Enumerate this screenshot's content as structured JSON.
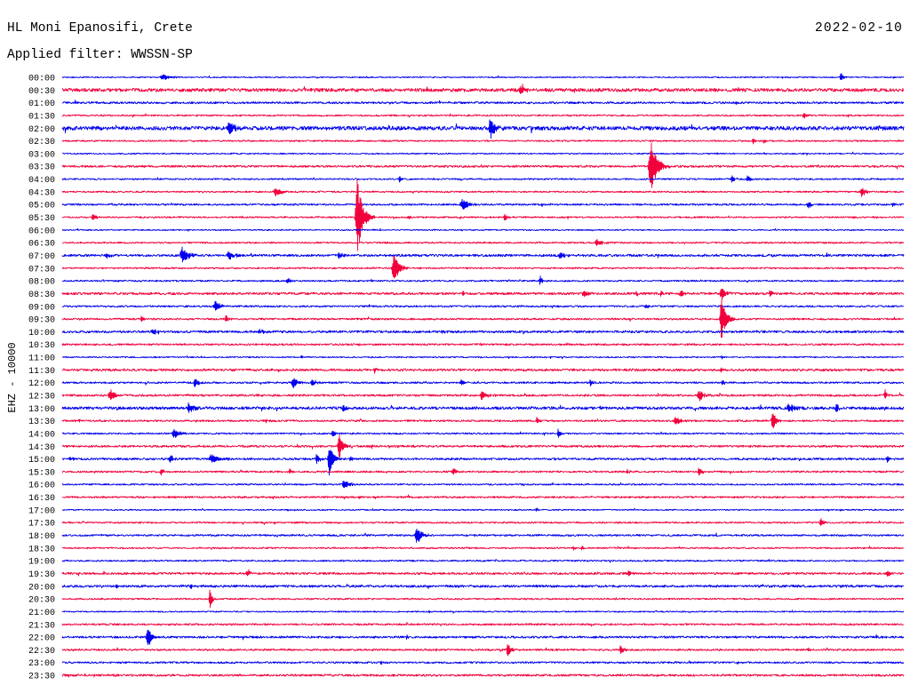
{
  "chart_data": {
    "type": "line",
    "title": "HL Moni Epanosifi, Crete",
    "date": "2022-02-10",
    "subtitle": "Applied filter: WWSSN-SP",
    "ylabel": "EHZ - 10000",
    "scale_counts": 10000,
    "x_range_minutes": [
      0,
      30
    ],
    "trace_colors": [
      "#0000ee",
      "#f2003c"
    ],
    "rows": [
      {
        "label": "00:00",
        "noise": 450,
        "events": [
          {
            "t": 3.5,
            "amp": 2100,
            "dur": 1.1
          },
          {
            "t": 25.66,
            "amp": 1000,
            "dur": 0.2
          },
          {
            "t": 27.72,
            "amp": 4200,
            "dur": 0.3
          },
          {
            "t": 29.6,
            "amp": 700,
            "dur": 0.2
          }
        ]
      },
      {
        "label": "00:30",
        "noise": 1300,
        "events": [
          {
            "t": 16.3,
            "amp": 4900,
            "dur": 0.5
          },
          {
            "t": 24.08,
            "amp": 2100,
            "dur": 0.3
          },
          {
            "t": 29.5,
            "amp": 1200,
            "dur": 0.2
          }
        ]
      },
      {
        "label": "01:00",
        "noise": 800,
        "events": [
          {
            "t": 11.6,
            "amp": 900,
            "dur": 0.3
          },
          {
            "t": 24.0,
            "amp": 2100,
            "dur": 0.3
          }
        ]
      },
      {
        "label": "01:30",
        "noise": 600,
        "events": [
          {
            "t": 4.75,
            "amp": 1400,
            "dur": 0.2
          },
          {
            "t": 26.4,
            "amp": 3500,
            "dur": 0.3
          }
        ]
      },
      {
        "label": "02:00",
        "noise": 1500,
        "events": [
          {
            "t": 5.86,
            "amp": 5600,
            "dur": 0.8
          },
          {
            "t": 15.2,
            "amp": 8400,
            "dur": 0.6
          },
          {
            "t": 29.1,
            "amp": 1500,
            "dur": 0.3
          }
        ]
      },
      {
        "label": "02:30",
        "noise": 600,
        "events": [
          {
            "t": 24.6,
            "amp": 2800,
            "dur": 0.25
          },
          {
            "t": 25.0,
            "amp": 2100,
            "dur": 0.2
          }
        ]
      },
      {
        "label": "03:00",
        "noise": 500,
        "events": [
          {
            "t": 26.0,
            "amp": 800,
            "dur": 0.2
          }
        ]
      },
      {
        "label": "03:30",
        "noise": 800,
        "events": [
          {
            "t": 20.9,
            "amp": 22000,
            "dur": 0.8
          }
        ]
      },
      {
        "label": "04:00",
        "noise": 600,
        "events": [
          {
            "t": 12.0,
            "amp": 3500,
            "dur": 0.2
          },
          {
            "t": 23.85,
            "amp": 3500,
            "dur": 0.3
          },
          {
            "t": 24.4,
            "amp": 3500,
            "dur": 0.3
          }
        ]
      },
      {
        "label": "04:30",
        "noise": 600,
        "events": [
          {
            "t": 7.54,
            "amp": 4200,
            "dur": 0.7
          },
          {
            "t": 28.45,
            "amp": 4200,
            "dur": 0.5
          }
        ]
      },
      {
        "label": "05:00",
        "noise": 700,
        "events": [
          {
            "t": 14.19,
            "amp": 4200,
            "dur": 0.8
          },
          {
            "t": 26.55,
            "amp": 2800,
            "dur": 0.5
          },
          {
            "t": 29.56,
            "amp": 2100,
            "dur": 0.3
          }
        ]
      },
      {
        "label": "05:30",
        "noise": 600,
        "events": [
          {
            "t": 1.05,
            "amp": 3500,
            "dur": 0.4
          },
          {
            "t": 10.45,
            "amp": 31000,
            "dur": 0.7
          },
          {
            "t": 12.3,
            "amp": 1400,
            "dur": 0.3
          },
          {
            "t": 15.74,
            "amp": 3500,
            "dur": 0.3
          }
        ]
      },
      {
        "label": "06:00",
        "noise": 500,
        "events": []
      },
      {
        "label": "06:30",
        "noise": 600,
        "events": [
          {
            "t": 19.0,
            "amp": 3500,
            "dur": 0.6
          }
        ]
      },
      {
        "label": "07:00",
        "noise": 900,
        "events": [
          {
            "t": 1.52,
            "amp": 2800,
            "dur": 0.4
          },
          {
            "t": 4.21,
            "amp": 7000,
            "dur": 0.7
          },
          {
            "t": 5.86,
            "amp": 3500,
            "dur": 0.8
          },
          {
            "t": 9.82,
            "amp": 3500,
            "dur": 0.4
          },
          {
            "t": 17.68,
            "amp": 3500,
            "dur": 0.6
          },
          {
            "t": 22.8,
            "amp": 1200,
            "dur": 0.3
          }
        ]
      },
      {
        "label": "07:30",
        "noise": 600,
        "events": [
          {
            "t": 11.75,
            "amp": 11900,
            "dur": 0.7
          }
        ]
      },
      {
        "label": "08:00",
        "noise": 600,
        "events": [
          {
            "t": 7.98,
            "amp": 2800,
            "dur": 0.4
          },
          {
            "t": 17.01,
            "amp": 4200,
            "dur": 0.3
          }
        ]
      },
      {
        "label": "08:30",
        "noise": 900,
        "events": [
          {
            "t": 14.26,
            "amp": 1400,
            "dur": 0.3
          },
          {
            "t": 18.53,
            "amp": 2800,
            "dur": 0.5
          },
          {
            "t": 20.43,
            "amp": 2800,
            "dur": 0.3
          },
          {
            "t": 21.3,
            "amp": 1800,
            "dur": 0.4
          },
          {
            "t": 22.0,
            "amp": 2100,
            "dur": 0.4
          },
          {
            "t": 23.44,
            "amp": 5600,
            "dur": 0.5
          },
          {
            "t": 25.19,
            "amp": 2800,
            "dur": 0.3
          }
        ]
      },
      {
        "label": "09:00",
        "noise": 700,
        "events": [
          {
            "t": 5.39,
            "amp": 4200,
            "dur": 0.7
          },
          {
            "t": 20.75,
            "amp": 1400,
            "dur": 0.4
          }
        ]
      },
      {
        "label": "09:30",
        "noise": 700,
        "events": [
          {
            "t": 2.79,
            "amp": 2800,
            "dur": 0.3
          },
          {
            "t": 5.8,
            "amp": 3500,
            "dur": 0.3
          },
          {
            "t": 23.44,
            "amp": 17500,
            "dur": 0.6
          }
        ]
      },
      {
        "label": "10:00",
        "noise": 900,
        "events": [
          {
            "t": 3.17,
            "amp": 2800,
            "dur": 0.5
          },
          {
            "t": 6.97,
            "amp": 2800,
            "dur": 0.5
          },
          {
            "t": 13.5,
            "amp": 1000,
            "dur": 0.3
          }
        ]
      },
      {
        "label": "10:30",
        "noise": 700,
        "events": [
          {
            "t": 11.15,
            "amp": 1400,
            "dur": 0.4
          },
          {
            "t": 14.9,
            "amp": 1400,
            "dur": 0.3
          }
        ]
      },
      {
        "label": "11:00",
        "noise": 500,
        "events": [
          {
            "t": 8.5,
            "amp": 2100,
            "dur": 0.2
          },
          {
            "t": 23.5,
            "amp": 1400,
            "dur": 0.2
          }
        ]
      },
      {
        "label": "11:30",
        "noise": 900,
        "events": [
          {
            "t": 11.1,
            "amp": 2100,
            "dur": 0.3
          },
          {
            "t": 23.44,
            "amp": 2100,
            "dur": 0.3
          }
        ]
      },
      {
        "label": "12:00",
        "noise": 700,
        "events": [
          {
            "t": 4.69,
            "amp": 4200,
            "dur": 0.4
          },
          {
            "t": 8.17,
            "amp": 4900,
            "dur": 0.6
          },
          {
            "t": 8.87,
            "amp": 4200,
            "dur": 0.4
          },
          {
            "t": 14.19,
            "amp": 2800,
            "dur": 0.3
          },
          {
            "t": 18.79,
            "amp": 2800,
            "dur": 0.3
          },
          {
            "t": 23.5,
            "amp": 2800,
            "dur": 0.3
          }
        ]
      },
      {
        "label": "12:30",
        "noise": 800,
        "events": [
          {
            "t": 1.65,
            "amp": 5600,
            "dur": 0.6
          },
          {
            "t": 6.97,
            "amp": 2100,
            "dur": 0.2
          },
          {
            "t": 14.9,
            "amp": 4200,
            "dur": 0.6
          },
          {
            "t": 22.65,
            "amp": 4900,
            "dur": 0.6
          },
          {
            "t": 29.3,
            "amp": 4900,
            "dur": 0.2
          }
        ]
      },
      {
        "label": "13:00",
        "noise": 1100,
        "events": [
          {
            "t": 4.44,
            "amp": 4200,
            "dur": 0.6
          },
          {
            "t": 9.98,
            "amp": 3500,
            "dur": 0.4
          },
          {
            "t": 25.82,
            "amp": 3500,
            "dur": 0.8
          },
          {
            "t": 27.56,
            "amp": 4900,
            "dur": 0.3
          }
        ]
      },
      {
        "label": "13:30",
        "noise": 700,
        "events": [
          {
            "t": 0.57,
            "amp": 1400,
            "dur": 0.2
          },
          {
            "t": 7.22,
            "amp": 2100,
            "dur": 0.3
          },
          {
            "t": 16.88,
            "amp": 2800,
            "dur": 0.4
          },
          {
            "t": 21.8,
            "amp": 4200,
            "dur": 0.6
          },
          {
            "t": 25.28,
            "amp": 9100,
            "dur": 0.4
          }
        ]
      },
      {
        "label": "14:00",
        "noise": 600,
        "events": [
          {
            "t": 3.9,
            "amp": 4200,
            "dur": 0.7
          },
          {
            "t": 9.6,
            "amp": 3500,
            "dur": 0.4
          },
          {
            "t": 17.65,
            "amp": 3500,
            "dur": 0.3
          }
        ]
      },
      {
        "label": "14:30",
        "noise": 800,
        "events": [
          {
            "t": 9.82,
            "amp": 11900,
            "dur": 0.5
          }
        ]
      },
      {
        "label": "15:00",
        "noise": 800,
        "events": [
          {
            "t": 0.25,
            "amp": 2100,
            "dur": 0.3
          },
          {
            "t": 3.8,
            "amp": 3500,
            "dur": 0.5
          },
          {
            "t": 5.23,
            "amp": 4200,
            "dur": 1.0
          },
          {
            "t": 9.03,
            "amp": 5600,
            "dur": 0.3
          },
          {
            "t": 9.47,
            "amp": 13000,
            "dur": 0.5
          },
          {
            "t": 10.23,
            "amp": 2800,
            "dur": 0.3
          },
          {
            "t": 29.37,
            "amp": 2800,
            "dur": 0.4
          }
        ]
      },
      {
        "label": "15:30",
        "noise": 700,
        "events": [
          {
            "t": 3.48,
            "amp": 2800,
            "dur": 0.4
          },
          {
            "t": 8.08,
            "amp": 2100,
            "dur": 0.3
          },
          {
            "t": 13.88,
            "amp": 2800,
            "dur": 0.5
          },
          {
            "t": 20.1,
            "amp": 2100,
            "dur": 0.3
          },
          {
            "t": 22.65,
            "amp": 4200,
            "dur": 0.4
          }
        ]
      },
      {
        "label": "16:00",
        "noise": 600,
        "events": [
          {
            "t": 9.98,
            "amp": 4200,
            "dur": 0.6
          }
        ]
      },
      {
        "label": "16:30",
        "noise": 700,
        "events": [
          {
            "t": 10.55,
            "amp": 2100,
            "dur": 0.2
          }
        ]
      },
      {
        "label": "17:00",
        "noise": 500,
        "events": [
          {
            "t": 16.88,
            "amp": 1400,
            "dur": 0.2
          }
        ]
      },
      {
        "label": "17:30",
        "noise": 600,
        "events": [
          {
            "t": 27.0,
            "amp": 3500,
            "dur": 0.4
          }
        ]
      },
      {
        "label": "18:00",
        "noise": 700,
        "events": [
          {
            "t": 12.58,
            "amp": 7700,
            "dur": 0.6
          }
        ]
      },
      {
        "label": "18:30",
        "noise": 600,
        "events": [
          {
            "t": 18.2,
            "amp": 2100,
            "dur": 0.2
          },
          {
            "t": 18.5,
            "amp": 2100,
            "dur": 0.2
          }
        ]
      },
      {
        "label": "19:00",
        "noise": 600,
        "events": [
          {
            "t": 9.91,
            "amp": 1400,
            "dur": 0.3
          }
        ]
      },
      {
        "label": "19:30",
        "noise": 800,
        "events": [
          {
            "t": 6.56,
            "amp": 2800,
            "dur": 0.4
          },
          {
            "t": 20.15,
            "amp": 2800,
            "dur": 0.3
          },
          {
            "t": 29.37,
            "amp": 2800,
            "dur": 0.4
          }
        ]
      },
      {
        "label": "20:00",
        "noise": 900,
        "events": [
          {
            "t": 1.9,
            "amp": 2100,
            "dur": 0.2
          },
          {
            "t": 4.53,
            "amp": 2100,
            "dur": 0.3
          }
        ]
      },
      {
        "label": "20:30",
        "noise": 600,
        "events": [
          {
            "t": 5.23,
            "amp": 9100,
            "dur": 0.3
          }
        ]
      },
      {
        "label": "21:00",
        "noise": 500,
        "events": [
          {
            "t": 13.05,
            "amp": 1400,
            "dur": 0.2
          }
        ]
      },
      {
        "label": "21:30",
        "noise": 700,
        "events": []
      },
      {
        "label": "22:00",
        "noise": 800,
        "events": [
          {
            "t": 3.0,
            "amp": 9800,
            "dur": 0.5
          },
          {
            "t": 6.43,
            "amp": 2100,
            "dur": 0.2
          },
          {
            "t": 12.26,
            "amp": 3500,
            "dur": 0.2
          },
          {
            "t": 28.99,
            "amp": 2100,
            "dur": 0.2
          }
        ]
      },
      {
        "label": "22:30",
        "noise": 700,
        "events": [
          {
            "t": 13.3,
            "amp": 1400,
            "dur": 0.2
          },
          {
            "t": 15.84,
            "amp": 5600,
            "dur": 0.4
          },
          {
            "t": 19.86,
            "amp": 4200,
            "dur": 0.4
          },
          {
            "t": 26.52,
            "amp": 2100,
            "dur": 0.3
          }
        ]
      },
      {
        "label": "23:00",
        "noise": 700,
        "events": [
          {
            "t": 11.34,
            "amp": 1400,
            "dur": 0.3
          }
        ]
      },
      {
        "label": "23:30",
        "noise": 800,
        "events": [
          {
            "t": 1.8,
            "amp": 1400,
            "dur": 0.2
          }
        ]
      }
    ]
  }
}
